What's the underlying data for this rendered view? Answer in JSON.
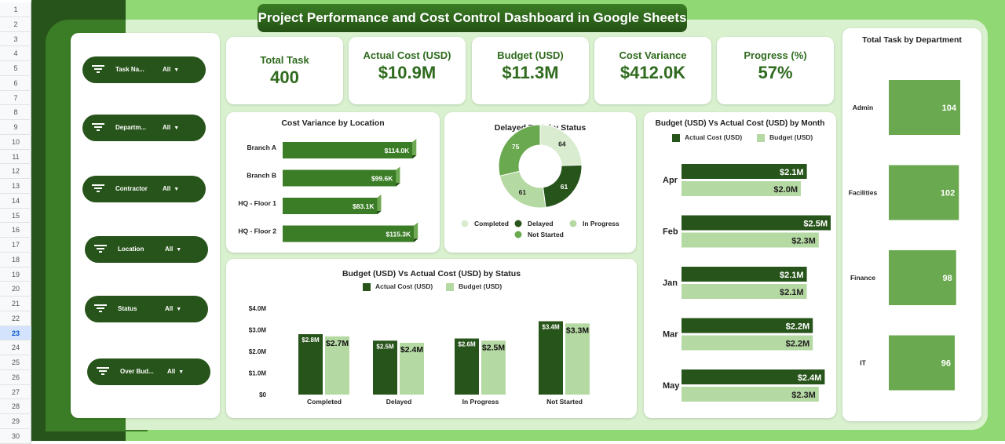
{
  "title": "Project Performance and Cost Control Dashboard in Google Sheets",
  "row_numbers": [
    "1",
    "2",
    "3",
    "4",
    "5",
    "6",
    "7",
    "8",
    "9",
    "10",
    "11",
    "12",
    "13",
    "14",
    "15",
    "16",
    "17",
    "18",
    "19",
    "20",
    "21",
    "22",
    "23",
    "24",
    "25",
    "26",
    "27",
    "28",
    "29",
    "30"
  ],
  "selected_row": "23",
  "filters": [
    {
      "label": "Task Na...",
      "value": "All"
    },
    {
      "label": "Departm...",
      "value": "All"
    },
    {
      "label": "Contractor",
      "value": "All"
    },
    {
      "label": "Location",
      "value": "All"
    },
    {
      "label": "Status",
      "value": "All"
    },
    {
      "label": "Over Bud...",
      "value": "All"
    }
  ],
  "kpis": [
    {
      "label": "Total Task",
      "value": "400"
    },
    {
      "label": "Actual Cost (USD)",
      "value": "$10.9M"
    },
    {
      "label": "Budget (USD)",
      "value": "$11.3M"
    },
    {
      "label": "Cost Variance",
      "value": "$412.0K"
    },
    {
      "label": "Progress (%)",
      "value": "57%"
    }
  ],
  "colors": {
    "dark": "#27541a",
    "mid": "#3b7d26",
    "light": "#b5d9a3",
    "pale": "#d9ecd0",
    "accent": "#6aa94f"
  },
  "chart_data": [
    {
      "type": "bar",
      "orientation": "horizontal",
      "title": "Cost Variance by Location",
      "categories": [
        "Branch A",
        "Branch B",
        "HQ - Floor 1",
        "HQ - Floor 2"
      ],
      "values": [
        114.0,
        99.6,
        83.1,
        115.3
      ],
      "labels": [
        "$114.0K",
        "$99.6K",
        "$83.1K",
        "$115.3K"
      ],
      "unit": "K USD"
    },
    {
      "type": "pie",
      "donut": true,
      "title": "Delayed Task by Status",
      "categories": [
        "Completed",
        "Delayed",
        "In Progress",
        "Not Started"
      ],
      "values": [
        64,
        61,
        61,
        75
      ],
      "legend": "bottom"
    },
    {
      "type": "bar",
      "orientation": "horizontal",
      "title": "Budget (USD) Vs Actual Cost (USD) by Month",
      "categories": [
        "Apr",
        "Feb",
        "Jan",
        "Mar",
        "May"
      ],
      "series": [
        {
          "name": "Actual Cost (USD)",
          "values": [
            2.1,
            2.5,
            2.1,
            2.2,
            2.4
          ],
          "labels": [
            "$2.1M",
            "$2.5M",
            "$2.1M",
            "$2.2M",
            "$2.4M"
          ]
        },
        {
          "name": "Budget (USD)",
          "values": [
            2.0,
            2.3,
            2.1,
            2.2,
            2.3
          ],
          "labels": [
            "$2.0M",
            "$2.3M",
            "$2.1M",
            "$2.2M",
            "$2.3M"
          ]
        }
      ],
      "legend": "top"
    },
    {
      "type": "bar",
      "title": "Budget (USD) Vs Actual Cost (USD) by Status",
      "categories": [
        "Completed",
        "Delayed",
        "In Progress",
        "Not Started"
      ],
      "series": [
        {
          "name": "Actual Cost (USD)",
          "values": [
            2.8,
            2.5,
            2.6,
            3.4
          ],
          "labels": [
            "$2.8M",
            "$2.5M",
            "$2.6M",
            "$3.4M"
          ]
        },
        {
          "name": "Budget (USD)",
          "values": [
            2.7,
            2.4,
            2.5,
            3.3
          ],
          "labels": [
            "$2.7M",
            "$2.4M",
            "$2.5M",
            "$3.3M"
          ]
        }
      ],
      "ylim": [
        0,
        4
      ],
      "yticks": [
        "$0",
        "$1.0M",
        "$2.0M",
        "$3.0M",
        "$4.0M"
      ],
      "legend": "top"
    },
    {
      "type": "bar",
      "orientation": "horizontal",
      "title": "Total Task by Department",
      "categories": [
        "Admin",
        "Facilities",
        "Finance",
        "IT"
      ],
      "values": [
        104,
        102,
        98,
        96
      ]
    }
  ]
}
